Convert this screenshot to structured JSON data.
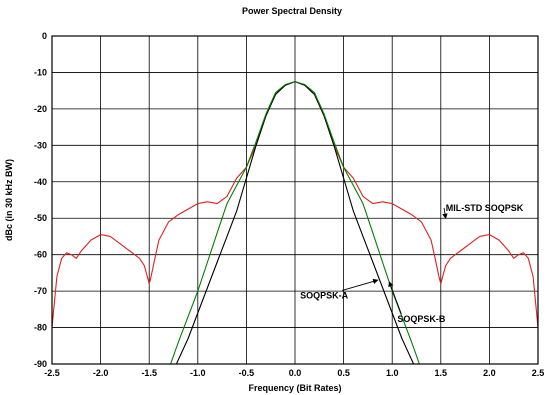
{
  "chart_data": {
    "type": "line",
    "title": "Power Spectral Density",
    "xlabel": "Frequency (Bit Rates)",
    "ylabel": "dBc (in 30 kHz BW)",
    "xlim": [
      -2.5,
      2.5
    ],
    "ylim": [
      -90,
      0
    ],
    "x_ticks": [
      -2.5,
      -2.0,
      -1.5,
      -1.0,
      -0.5,
      0.0,
      0.5,
      1.0,
      1.5,
      2.0,
      2.5
    ],
    "x_tick_labels": [
      "-2.5",
      "-2.0",
      "-1.5",
      "-1.0",
      "-0.5",
      "0.0",
      "0.5",
      "1.0",
      "1.5",
      "2.0",
      "2.5"
    ],
    "y_ticks": [
      0,
      -10,
      -20,
      -30,
      -40,
      -50,
      -60,
      -70,
      -80,
      -90
    ],
    "y_tick_labels": [
      "0",
      "-10",
      "-20",
      "-30",
      "-40",
      "-50",
      "-60",
      "-70",
      "-80",
      "-90"
    ],
    "grid": true,
    "legend": "none",
    "series": [
      {
        "color": "#e02020",
        "x": [
          -2.5,
          -2.45,
          -2.4,
          -2.35,
          -2.3,
          -2.25,
          -2.2,
          -2.1,
          -2.0,
          -1.9,
          -1.8,
          -1.7,
          -1.6,
          -1.55,
          -1.52,
          -1.5,
          -1.48,
          -1.45,
          -1.4,
          -1.3,
          -1.2,
          -1.1,
          -1.0,
          -0.9,
          -0.8,
          -0.7,
          -0.6,
          -0.5,
          -0.4,
          -0.3,
          -0.2,
          -0.1,
          0.0,
          0.1,
          0.2,
          0.3,
          0.4,
          0.5,
          0.6,
          0.7,
          0.8,
          0.9,
          1.0,
          1.1,
          1.2,
          1.3,
          1.4,
          1.45,
          1.48,
          1.5,
          1.52,
          1.55,
          1.6,
          1.7,
          1.8,
          1.9,
          2.0,
          2.1,
          2.2,
          2.25,
          2.3,
          2.35,
          2.4,
          2.45,
          2.5
        ],
        "y": [
          -80,
          -66,
          -61,
          -59.5,
          -60,
          -61,
          -59,
          -56,
          -54.5,
          -55,
          -57,
          -59,
          -61,
          -63,
          -66,
          -68,
          -66,
          -62,
          -56,
          -51,
          -49,
          -47.5,
          -46,
          -45.5,
          -46,
          -44,
          -39,
          -36,
          -30,
          -22,
          -16,
          -13.5,
          -12.5,
          -13.5,
          -16,
          -22,
          -30,
          -36,
          -39,
          -44,
          -46,
          -45.5,
          -46,
          -47.5,
          -49,
          -51,
          -56,
          -62,
          -66,
          -68,
          -66,
          -63,
          -61,
          -59,
          -57,
          -55,
          -54.5,
          -56,
          -59,
          -61,
          -60,
          -59.5,
          -61,
          -66,
          -80
        ]
      },
      {
        "name": "SOQPSK-A",
        "color": "#000000",
        "x": [
          -1.22,
          -1.1,
          -1.0,
          -0.9,
          -0.8,
          -0.7,
          -0.6,
          -0.5,
          -0.4,
          -0.3,
          -0.2,
          -0.1,
          0.0,
          0.1,
          0.2,
          0.3,
          0.4,
          0.5,
          0.6,
          0.7,
          0.8,
          0.9,
          1.0,
          1.1,
          1.22
        ],
        "y": [
          -90,
          -83,
          -76,
          -69,
          -62,
          -55,
          -48,
          -39,
          -30,
          -22,
          -16,
          -13.5,
          -12.5,
          -13.5,
          -16,
          -22,
          -30,
          -39,
          -48,
          -55,
          -62,
          -69,
          -76,
          -83,
          -90
        ]
      },
      {
        "name": "SOQPSK-B",
        "color": "#008000",
        "x": [
          -1.28,
          -1.2,
          -1.1,
          -1.0,
          -0.9,
          -0.8,
          -0.7,
          -0.6,
          -0.5,
          -0.4,
          -0.3,
          -0.2,
          -0.1,
          0.0,
          0.1,
          0.2,
          0.3,
          0.4,
          0.5,
          0.6,
          0.7,
          0.8,
          0.9,
          1.0,
          1.1,
          1.2,
          1.28
        ],
        "y": [
          -90,
          -84,
          -77,
          -70,
          -62,
          -54,
          -46,
          -41,
          -36,
          -29,
          -21.5,
          -15.5,
          -13.3,
          -12.5,
          -13.3,
          -15.5,
          -21.5,
          -29,
          -36,
          -41,
          -46,
          -54,
          -62,
          -70,
          -77,
          -84,
          -90
        ]
      }
    ],
    "annotations": [
      {
        "text": "MIL-STD SOQPSK",
        "x": 1.95,
        "y": -48,
        "arrow_to": [
          1.55,
          -50
        ]
      },
      {
        "text": "SOQPSK-A",
        "x": 0.3,
        "y": -72,
        "arrow_to": [
          0.85,
          -67
        ]
      },
      {
        "text": "SOQPSK-B",
        "x": 1.3,
        "y": -78.5,
        "arrow_to": [
          0.97,
          -67.5
        ]
      }
    ]
  }
}
